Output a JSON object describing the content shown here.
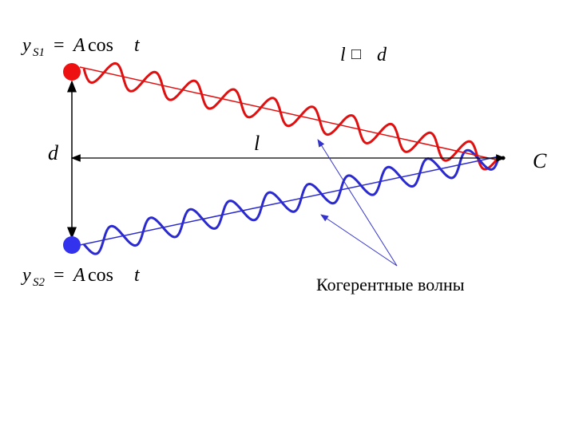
{
  "formula_s1": {
    "y": "y",
    "sub": "S1",
    "eq": "=",
    "amp": "A",
    "fn": "cos",
    "arg": "t"
  },
  "formula_s2": {
    "y": "y",
    "sub": "S2",
    "eq": "=",
    "amp": "A",
    "fn": "cos",
    "arg": "t"
  },
  "condition": {
    "left": "l",
    "op": "□",
    "right": "d"
  },
  "labels": {
    "d": "d",
    "l": "l",
    "c": "C"
  },
  "caption": "Когерентные волны"
}
